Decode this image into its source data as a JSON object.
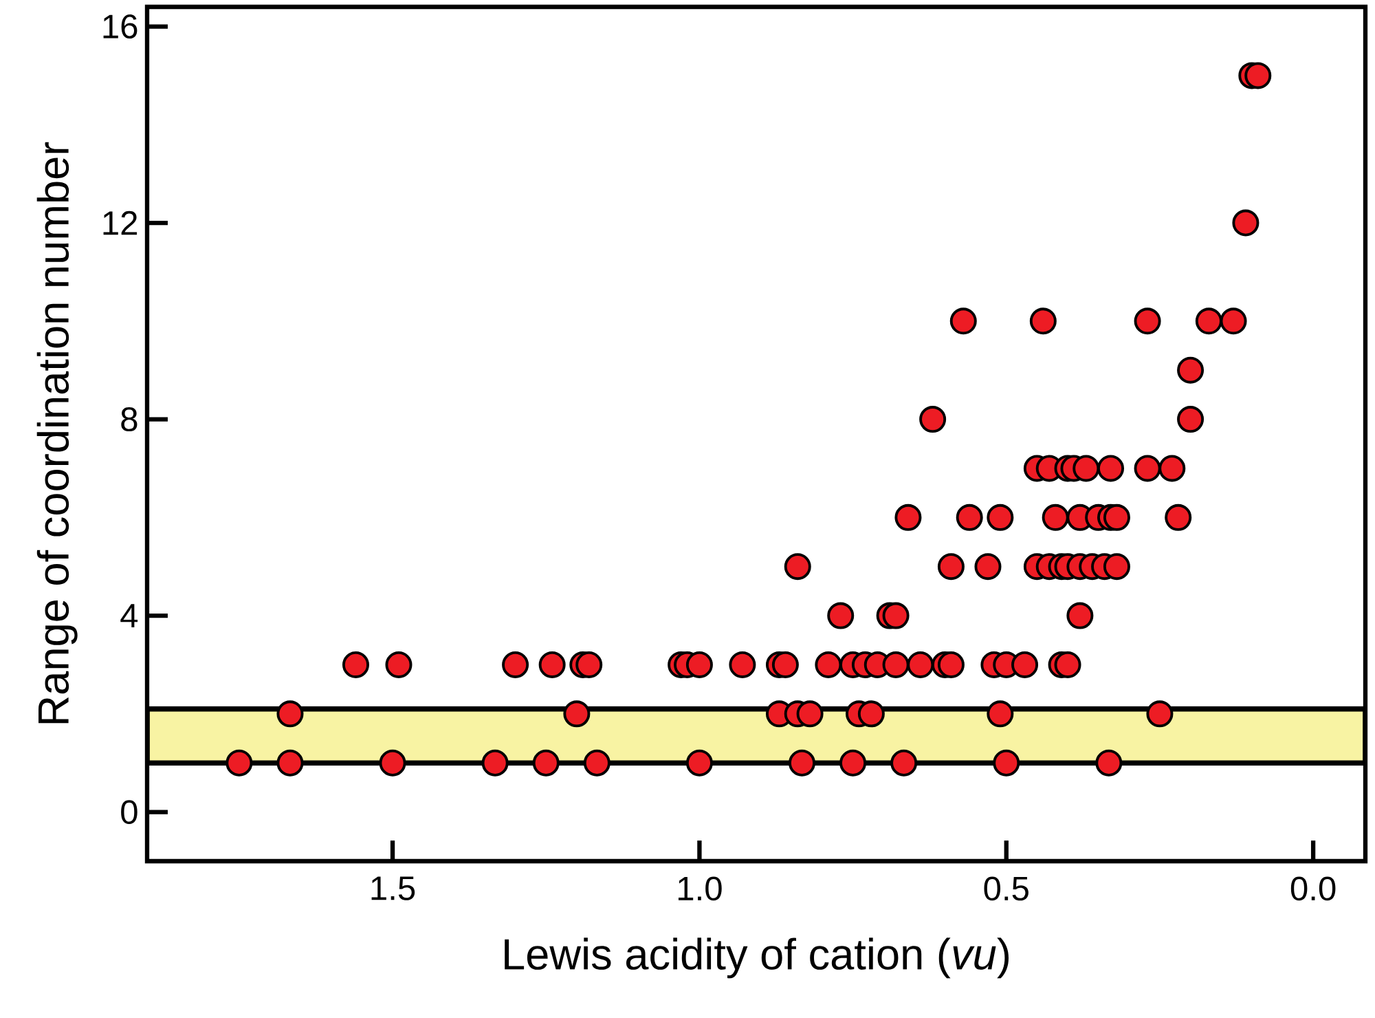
{
  "chart_data": {
    "type": "scatter",
    "xlabel": "Lewis acidity of cation (*vu*)",
    "ylabel": "Range of coordination number",
    "xlim": [
      1.9,
      -0.085
    ],
    "ylim": [
      -1,
      16.4
    ],
    "xticks": [
      {
        "value": 1.5,
        "label": "1.5"
      },
      {
        "value": 1.0,
        "label": "1.0"
      },
      {
        "value": 0.5,
        "label": "0.5"
      },
      {
        "value": 0.0,
        "label": "0.0"
      }
    ],
    "yticks": [
      0,
      4,
      8,
      12,
      16
    ],
    "marker": "circle",
    "grid": false,
    "bands": [
      {
        "axis": "y",
        "from": 1,
        "to": 2.1,
        "color": "#f8f3a3"
      }
    ],
    "series": [
      {
        "color": "#ed1c24",
        "x": [
          1.75,
          1.667,
          1.5,
          1.333,
          1.25,
          1.167,
          1.0,
          0.833,
          0.75,
          0.667,
          0.5,
          0.333,
          1.667,
          1.2,
          0.87,
          0.84,
          0.82,
          0.74,
          0.72,
          0.51,
          0.25,
          1.56,
          1.49,
          1.3,
          1.24,
          1.19,
          1.18,
          1.03,
          1.02,
          1.0,
          0.93,
          0.87,
          0.86,
          0.79,
          0.75,
          0.73,
          0.71,
          0.68,
          0.64,
          0.6,
          0.59,
          0.52,
          0.5,
          0.47,
          0.41,
          0.4,
          0.77,
          0.69,
          0.68,
          0.38,
          0.84,
          0.59,
          0.53,
          0.45,
          0.43,
          0.41,
          0.4,
          0.38,
          0.36,
          0.34,
          0.32,
          0.66,
          0.56,
          0.51,
          0.42,
          0.38,
          0.35,
          0.33,
          0.32,
          0.22,
          0.45,
          0.43,
          0.4,
          0.39,
          0.37,
          0.33,
          0.27,
          0.23,
          0.62,
          0.2,
          0.2,
          0.57,
          0.44,
          0.27,
          0.17,
          0.13,
          0.11,
          0.1,
          0.09
        ],
        "values": [
          1,
          1,
          1,
          1,
          1,
          1,
          1,
          1,
          1,
          1,
          1,
          1,
          2,
          2,
          2,
          2,
          2,
          2,
          2,
          2,
          2,
          3,
          3,
          3,
          3,
          3,
          3,
          3,
          3,
          3,
          3,
          3,
          3,
          3,
          3,
          3,
          3,
          3,
          3,
          3,
          3,
          3,
          3,
          3,
          3,
          3,
          4,
          4,
          4,
          4,
          5,
          5,
          5,
          5,
          5,
          5,
          5,
          5,
          5,
          5,
          5,
          6,
          6,
          6,
          6,
          6,
          6,
          6,
          6,
          6,
          7,
          7,
          7,
          7,
          7,
          7,
          7,
          7,
          8,
          8,
          9,
          10,
          10,
          10,
          10,
          10,
          12,
          15,
          15
        ]
      }
    ]
  }
}
